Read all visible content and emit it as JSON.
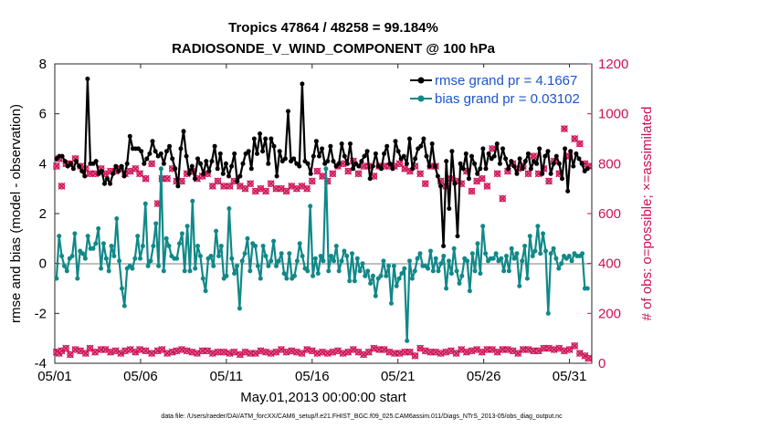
{
  "chart_data": {
    "type": "line",
    "title": "Tropics 47864 / 48258 = 99.184%",
    "subtitle": "RADIOSONDE_V_WIND_COMPONENT @ 100 hPa",
    "xlabel": "May.01,2013 00:00:00 start",
    "ylabel": "rmse and bias (model - observation)",
    "y2label": "# of obs: o=possible; ×=assimilated",
    "footnote": "data file: /Users/raeder/DAI/ATM_forcXX/CAM6_setup/f.e21.FHIST_BGC.f09_025.CAM6assim.011/Diags_NTrS_2013-05/obs_diag_output.nc",
    "xlim": [
      1,
      32.3
    ],
    "ylim": [
      -4,
      8
    ],
    "y2lim": [
      0,
      1200
    ],
    "x_ticks": [
      1,
      6,
      11,
      16,
      21,
      26,
      31
    ],
    "x_tick_labels": [
      "05/01",
      "05/06",
      "05/11",
      "05/16",
      "05/21",
      "05/26",
      "05/31"
    ],
    "y_ticks": [
      -4,
      -2,
      0,
      2,
      4,
      6,
      8
    ],
    "y2_ticks": [
      0,
      200,
      400,
      600,
      800,
      1000,
      1200
    ],
    "legend_position": "top-right",
    "series": [
      {
        "name": "rmse grand pr = 4.1667",
        "color": "#000000",
        "values": [
          4.2,
          4.3,
          4.3,
          4.1,
          3.9,
          4.0,
          3.8,
          4.1,
          3.9,
          3.7,
          3.5,
          7.4,
          4.0,
          4.0,
          4.1,
          3.6,
          3.7,
          3.2,
          3.4,
          3.2,
          3.6,
          3.9,
          3.7,
          3.9,
          3.5,
          4.0,
          5.1,
          4.6,
          4.6,
          4.6,
          4.5,
          4.0,
          4.2,
          4.4,
          4.9,
          4.5,
          4.3,
          4.4,
          4.0,
          4.5,
          4.7,
          4.2,
          3.8,
          3.1,
          4.6,
          5.3,
          4.3,
          3.6,
          3.9,
          3.4,
          4.2,
          4.0,
          3.6,
          4.1,
          3.7,
          4.1,
          4.7,
          3.8,
          4.4,
          3.6,
          4.0,
          3.5,
          3.9,
          4.4,
          3.3,
          3.5,
          4.0,
          4.4,
          4.5,
          3.8,
          5.0,
          4.4,
          5.2,
          4.5,
          5.0,
          4.0,
          5.0,
          4.7,
          3.5,
          4.5,
          4.1,
          4.2,
          6.1,
          4.1,
          4.2,
          4.0,
          3.9,
          7.2,
          4.1,
          4.0,
          3.6,
          4.3,
          4.9,
          4.3,
          4.6,
          4.0,
          4.1,
          4.7,
          4.1,
          3.9,
          4.0,
          4.8,
          4.3,
          4.0,
          4.8,
          3.8,
          4.0,
          3.9,
          4.1,
          4.3,
          4.5,
          3.4,
          3.9,
          4.4,
          3.9,
          3.8,
          4.4,
          4.7,
          4.0,
          3.8,
          4.9,
          4.5,
          4.2,
          4.3,
          4.0,
          5.0,
          3.8,
          4.2,
          4.6,
          4.7,
          5.0,
          4.3,
          3.9,
          4.8,
          3.9,
          3.5,
          3.1,
          0.7,
          4.1,
          2.2,
          4.5,
          3.2,
          1.1,
          4.0,
          3.8,
          4.4,
          3.4,
          4.3,
          4.0,
          3.6,
          3.8,
          4.6,
          3.8,
          4.4,
          4.2,
          4.3,
          4.8,
          4.0,
          4.6,
          4.2,
          3.8,
          4.1,
          3.9,
          3.6,
          4.2,
          3.8,
          4.1,
          4.4,
          3.8,
          4.1,
          4.0,
          4.6,
          3.6,
          4.3,
          4.5,
          3.6,
          4.0,
          4.3,
          4.0,
          3.4,
          4.6,
          2.9,
          4.5,
          3.9,
          4.4,
          4.2,
          4.0,
          3.7,
          3.8
        ]
      },
      {
        "name": "bias grand pr = 0.03102",
        "color": "#118888",
        "values": [
          -0.6,
          1.1,
          0.3,
          -0.1,
          -0.3,
          0.2,
          0.3,
          1.2,
          -0.6,
          0.5,
          0.4,
          0.2,
          1.1,
          0.6,
          0.6,
          0.8,
          1.4,
          -0.2,
          0.8,
          0.2,
          -0.3,
          0.7,
          0.3,
          1.8,
          0.1,
          -1.0,
          -1.7,
          -0.2,
          -0.1,
          -0.2,
          0.2,
          1.1,
          0.2,
          0.7,
          2.4,
          -0.1,
          0.1,
          0.7,
          1.6,
          -0.1,
          3.8,
          -0.3,
          1.0,
          0.7,
          0.3,
          0.2,
          0.2,
          0.8,
          1.2,
          -0.3,
          1.5,
          -0.3,
          2.5,
          -0.2,
          0.7,
          0.3,
          -0.6,
          -1.1,
          0.2,
          0.3,
          -0.1,
          1.3,
          0.3,
          0.7,
          -0.6,
          -0.5,
          2.2,
          0.2,
          -0.4,
          -0.1,
          -1.8,
          0.1,
          0.4,
          1.0,
          -0.3,
          0.8,
          0.7,
          -0.1,
          -0.6,
          0.7,
          0.3,
          -0.1,
          0.1,
          0.9,
          -0.1,
          0.1,
          0.4,
          -0.4,
          -0.6,
          0.4,
          -0.6,
          -0.5,
          0.1,
          0.8,
          0.3,
          -0.2,
          -0.3,
          2.3,
          -0.5,
          0.2,
          -0.4,
          0.3,
          0.1,
          3.8,
          -0.3,
          0.3,
          0.1,
          0.7,
          -0.3,
          0.1,
          0.5,
          0.3,
          -0.7,
          0.4,
          -0.7,
          0.2,
          -0.3,
          0.0,
          -0.5,
          -0.3,
          -0.8,
          -0.5,
          -1.3,
          -0.6,
          -0.5,
          0.1,
          -0.5,
          -0.1,
          -1.6,
          -0.1,
          -0.9,
          -0.6,
          -0.4,
          -0.2,
          -3.1,
          0.1,
          -0.6,
          -0.3,
          0.2,
          0.4,
          -0.1,
          -0.1,
          -0.2,
          0.5,
          -0.3,
          0.2,
          -0.3,
          0.0,
          0.3,
          -1.0,
          0.1,
          -0.4,
          0.6,
          -0.3,
          -0.8,
          -0.5,
          0.2,
          0.1,
          -1.1,
          0.4,
          -0.3,
          0.8,
          -0.4,
          1.5,
          0.4,
          0.1,
          0.2,
          0.2,
          0.4,
          0.1,
          0.2,
          -0.3,
          0.3,
          -0.3,
          0.6,
          0.2,
          0.4,
          -0.9,
          0.1,
          0.7,
          -0.6,
          1.1,
          0.3,
          0.5,
          1.5,
          0.4,
          1.2,
          0.5,
          -2.0,
          0.4,
          0.6,
          0.2,
          -0.2,
          0.0,
          0.3,
          0.2,
          0.3,
          0.1,
          0.4,
          0.3,
          0.3,
          0.4,
          -1.0,
          -1.0
        ]
      },
      {
        "name": "possible / assimilated obs",
        "color": "#cc1155",
        "x": [
          1.1,
          1.25,
          1.4,
          1.65,
          1.9,
          2.2,
          2.5,
          2.8,
          3.05,
          3.35,
          3.7,
          3.95,
          4.25,
          4.55,
          4.85,
          5.1,
          5.4,
          5.7,
          5.95,
          6.3,
          6.65,
          7.0,
          7.25,
          7.55,
          7.85,
          8.1,
          8.4,
          8.7,
          9.0,
          9.3,
          9.6,
          9.9,
          10.2,
          10.5,
          10.85,
          11.2,
          11.45,
          11.8,
          12.1,
          12.4,
          12.7,
          13.0,
          13.3,
          13.6,
          13.9,
          14.2,
          14.5,
          14.8,
          15.1,
          15.4,
          15.7,
          16.0,
          16.3,
          16.6,
          16.9,
          17.2,
          17.5,
          17.8,
          18.1,
          18.4,
          18.7,
          19.0,
          19.3,
          19.6,
          19.9,
          20.2,
          20.5,
          20.8,
          21.1,
          21.4,
          21.7,
          22.0,
          22.3,
          22.6,
          22.9,
          23.2,
          23.5,
          23.8,
          24.1,
          24.4,
          24.7,
          25.0,
          25.3,
          25.6,
          25.9,
          26.2,
          26.5,
          26.8,
          27.1,
          27.4,
          27.7,
          28.0,
          28.3,
          28.6,
          28.9,
          29.2,
          29.5,
          29.8,
          30.1,
          30.4,
          30.7,
          31.0,
          31.3,
          31.6,
          31.9,
          32.1
        ],
        "count_high": [
          790,
          820,
          710,
          800,
          800,
          820,
          790,
          780,
          760,
          760,
          780,
          760,
          770,
          770,
          780,
          760,
          770,
          780,
          760,
          740,
          800,
          640,
          740,
          740,
          780,
          730,
          730,
          760,
          770,
          740,
          750,
          760,
          710,
          730,
          710,
          710,
          730,
          710,
          700,
          720,
          690,
          700,
          690,
          720,
          700,
          700,
          690,
          710,
          700,
          710,
          700,
          730,
          770,
          750,
          730,
          760,
          790,
          800,
          770,
          810,
          760,
          790,
          790,
          750,
          790,
          790,
          790,
          790,
          800,
          780,
          770,
          790,
          760,
          720,
          790,
          790,
          730,
          710,
          740,
          730,
          720,
          770,
          690,
          730,
          740,
          710,
          860,
          760,
          660,
          770,
          800,
          780,
          790,
          760,
          830,
          760,
          780,
          730,
          810,
          760,
          940,
          830,
          900,
          880,
          800,
          790
        ],
        "count_low": [
          45,
          40,
          50,
          60,
          35,
          55,
          50,
          40,
          60,
          45,
          55,
          55,
          45,
          50,
          40,
          50,
          55,
          45,
          55,
          50,
          40,
          50,
          55,
          40,
          45,
          50,
          55,
          50,
          45,
          40,
          50,
          50,
          40,
          45,
          45,
          40,
          45,
          35,
          45,
          40,
          40,
          50,
          45,
          40,
          45,
          55,
          45,
          50,
          45,
          40,
          55,
          50,
          40,
          45,
          40,
          45,
          50,
          40,
          45,
          55,
          45,
          35,
          45,
          60,
          55,
          55,
          45,
          40,
          40,
          45,
          45,
          30,
          60,
          50,
          45,
          45,
          40,
          45,
          50,
          40,
          55,
          45,
          50,
          55,
          45,
          55,
          55,
          45,
          55,
          55,
          50,
          40,
          55,
          55,
          50,
          50,
          60,
          60,
          55,
          60,
          50,
          55,
          70,
          40,
          30,
          20
        ]
      }
    ]
  }
}
